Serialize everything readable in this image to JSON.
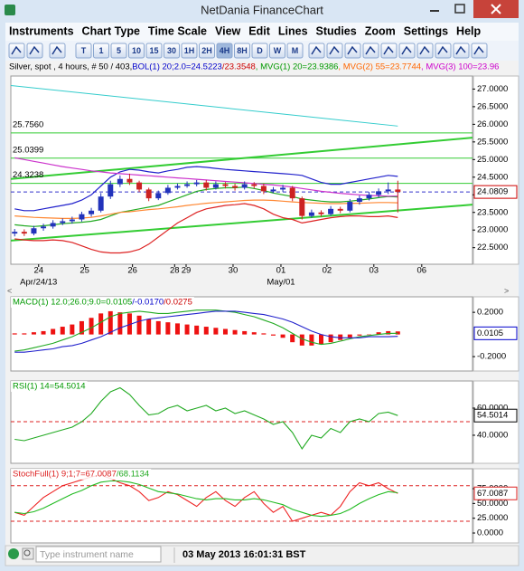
{
  "window": {
    "title": "NetDania FinanceChart"
  },
  "menu": [
    "Instruments",
    "Chart Type",
    "Time Scale",
    "View",
    "Edit",
    "Lines",
    "Studies",
    "Zoom",
    "Settings",
    "Help"
  ],
  "toolbar": {
    "buttons": [
      "T",
      "1",
      "5",
      "10",
      "15",
      "30",
      "1H",
      "2H",
      "4H",
      "8H",
      "D",
      "W",
      "M"
    ],
    "pressed": "4H"
  },
  "info": [
    {
      "text": "Silver, spot , 4 hours, # 50 / 403, ",
      "color": "#000000"
    },
    {
      "text": "BOL(1) 20;2.0=24.5223",
      "color": "#0000cc"
    },
    {
      "text": "/23.3548",
      "color": "#cc0000"
    },
    {
      "text": ", MVG(1) 20=23.9386",
      "color": "#009900"
    },
    {
      "text": ", MVG(2) 55=23.7744",
      "color": "#ff6600"
    },
    {
      "text": ", MVG(3) 100=23.96",
      "color": "#cc00cc"
    }
  ],
  "main_chart": {
    "xlim": [
      -0.4,
      47.8
    ],
    "ylim": [
      22.03,
      27.37
    ],
    "yticks": [
      {
        "value": 22.5,
        "label": "22.5000"
      },
      {
        "value": 23,
        "label": "23.0000"
      },
      {
        "value": 23.5,
        "label": "23.5000"
      },
      {
        "value": 24,
        "label": "24.0000"
      },
      {
        "value": 24.5,
        "label": "24.5000"
      },
      {
        "value": 25,
        "label": "25.0000"
      },
      {
        "value": 25.5,
        "label": "25.5000"
      },
      {
        "value": 26,
        "label": "26.0000"
      },
      {
        "value": 26.5,
        "label": "26.5000"
      },
      {
        "value": 27,
        "label": "27.0000"
      }
    ],
    "xticks": [
      {
        "value": 2.5,
        "label": "24"
      },
      {
        "value": 7.3,
        "label": "25"
      },
      {
        "value": 12.3,
        "label": "26"
      },
      {
        "value": 16.7,
        "label": "28"
      },
      {
        "value": 17.9,
        "label": "29"
      },
      {
        "value": 22.8,
        "label": "30"
      },
      {
        "value": 27.8,
        "label": "01"
      },
      {
        "value": 32.6,
        "label": "02"
      },
      {
        "value": 37.5,
        "label": "03"
      },
      {
        "value": 42.5,
        "label": "06"
      }
    ],
    "date_labels": [
      {
        "value": 2.5,
        "label": "Apr/24/13"
      },
      {
        "value": 27.8,
        "label": "May/01"
      }
    ],
    "up_color": "#2233bb",
    "down_color": "#cc2222",
    "open": [
      22.9,
      22.95,
      22.9,
      23.05,
      23.1,
      23.2,
      23.25,
      23.3,
      23.45,
      23.55,
      23.95,
      24.3,
      24.45,
      24.35,
      24.15,
      23.9,
      24.05,
      24.2,
      24.25,
      24.3,
      24.35,
      24.2,
      24.3,
      24.25,
      24.2,
      24.3,
      24.25,
      24.1,
      24.15,
      24.2,
      23.9,
      23.4,
      23.5,
      23.45,
      23.6,
      23.55,
      23.8,
      23.9,
      24.0,
      24.1,
      24.15
    ],
    "high": [
      23.03,
      23.02,
      23.12,
      23.18,
      23.28,
      23.33,
      23.38,
      23.52,
      23.63,
      24.05,
      24.4,
      24.55,
      24.6,
      24.4,
      24.2,
      24.12,
      24.28,
      24.32,
      24.38,
      24.42,
      24.42,
      24.38,
      24.36,
      24.32,
      24.38,
      24.36,
      24.32,
      24.22,
      24.28,
      24.25,
      23.95,
      23.58,
      23.56,
      23.68,
      23.66,
      23.88,
      23.98,
      24.08,
      24.18,
      24.35,
      24.4
    ],
    "low": [
      22.82,
      22.83,
      22.85,
      22.98,
      23.04,
      23.14,
      23.18,
      23.24,
      23.38,
      23.5,
      23.88,
      24.22,
      24.28,
      24.08,
      23.82,
      23.85,
      24.0,
      24.15,
      24.2,
      24.24,
      24.12,
      24.15,
      24.18,
      24.12,
      24.15,
      24.18,
      24.02,
      24.05,
      24.08,
      23.82,
      23.3,
      23.35,
      23.38,
      23.4,
      23.48,
      23.5,
      23.72,
      23.84,
      23.92,
      24.02,
      23.5
    ],
    "close": [
      22.95,
      22.9,
      23.05,
      23.1,
      23.2,
      23.25,
      23.3,
      23.45,
      23.55,
      23.95,
      24.3,
      24.45,
      24.35,
      24.15,
      23.9,
      24.05,
      24.2,
      24.25,
      24.3,
      24.35,
      24.2,
      24.3,
      24.25,
      24.2,
      24.3,
      24.25,
      24.1,
      24.15,
      24.2,
      23.9,
      23.4,
      23.5,
      23.45,
      23.6,
      23.55,
      23.8,
      23.9,
      24.0,
      24.1,
      24.15,
      24.0809
    ],
    "series": [
      {
        "color": "#2222cc",
        "values": [
          23.6,
          23.55,
          23.55,
          23.6,
          23.65,
          23.7,
          23.75,
          23.85,
          24.0,
          24.25,
          24.5,
          24.65,
          24.72,
          24.7,
          24.65,
          24.62,
          24.68,
          24.72,
          24.78,
          24.8,
          24.78,
          24.75,
          24.72,
          24.7,
          24.68,
          24.66,
          24.64,
          24.62,
          24.6,
          24.58,
          24.55,
          24.45,
          24.35,
          24.3,
          24.3,
          24.35,
          24.4,
          24.45,
          24.5,
          24.55,
          24.5223
        ]
      },
      {
        "color": "#dd2222",
        "values": [
          22.75,
          22.72,
          22.7,
          22.7,
          22.72,
          22.7,
          22.65,
          22.55,
          22.45,
          22.38,
          22.35,
          22.35,
          22.38,
          22.45,
          22.6,
          22.8,
          23.0,
          23.2,
          23.35,
          23.5,
          23.6,
          23.65,
          23.7,
          23.72,
          23.75,
          23.7,
          23.6,
          23.45,
          23.35,
          23.3,
          23.2,
          23.25,
          23.3,
          23.35,
          23.38,
          23.4,
          23.4,
          23.38,
          23.38,
          23.4,
          23.3548
        ]
      },
      {
        "color": "#22aa22",
        "values": [
          23.15,
          23.12,
          23.1,
          23.12,
          23.15,
          23.18,
          23.2,
          23.22,
          23.25,
          23.3,
          23.4,
          23.5,
          23.55,
          23.6,
          23.65,
          23.7,
          23.8,
          23.9,
          24.0,
          24.1,
          24.15,
          24.18,
          24.2,
          24.2,
          24.22,
          24.18,
          24.12,
          24.05,
          24.0,
          23.95,
          23.88,
          23.85,
          23.82,
          23.8,
          23.8,
          23.82,
          23.85,
          23.88,
          23.92,
          23.95,
          23.9386
        ]
      },
      {
        "color": "#ff8833",
        "values": [
          23.4,
          23.38,
          23.36,
          23.35,
          23.34,
          23.33,
          23.33,
          23.34,
          23.36,
          23.4,
          23.45,
          23.5,
          23.52,
          23.55,
          23.58,
          23.6,
          23.63,
          23.66,
          23.7,
          23.73,
          23.76,
          23.78,
          23.8,
          23.82,
          23.84,
          23.85,
          23.85,
          23.84,
          23.82,
          23.8,
          23.78,
          23.77,
          23.76,
          23.75,
          23.75,
          23.76,
          23.76,
          23.77,
          23.78,
          23.78,
          23.7744
        ]
      },
      {
        "color": "#cc33cc",
        "values": [
          25.05,
          25.0,
          24.95,
          24.9,
          24.85,
          24.8,
          24.76,
          24.72,
          24.68,
          24.65,
          24.62,
          24.6,
          24.58,
          24.56,
          24.54,
          24.52,
          24.5,
          24.48,
          24.46,
          24.44,
          24.42,
          24.4,
          24.38,
          24.36,
          24.34,
          24.32,
          24.3,
          24.28,
          24.25,
          24.22,
          24.18,
          24.14,
          24.1,
          24.07,
          24.04,
          24.02,
          24.0,
          23.98,
          23.97,
          23.96,
          23.962
        ]
      }
    ],
    "trend_lines": [
      {
        "color": "#33cccc",
        "x": [
          -0.4,
          40
        ],
        "y": [
          27.1,
          25.95
        ]
      },
      {
        "color": "#33cc33",
        "x": [
          -0.4,
          47.8
        ],
        "y": [
          24.45,
          25.62
        ]
      },
      {
        "color": "#33cc33",
        "x": [
          -0.4,
          47.8
        ],
        "y": [
          22.7,
          23.72
        ]
      }
    ],
    "level_color": "#33cc33",
    "levels": [
      {
        "value": 25.756,
        "label": "25.7560"
      },
      {
        "value": 25.0399,
        "label": "25.0399"
      },
      {
        "value": 24.3238,
        "label": "24.3238"
      }
    ],
    "last": {
      "value": 24.0809,
      "label": "24.0809",
      "color": "#cc0000",
      "line_color": "#3333cc"
    }
  },
  "macd": {
    "label": [
      {
        "text": "MACD(1) 12.0;26.0;9.0=0.0105",
        "color": "#009900"
      },
      {
        "text": "/-0.0170",
        "color": "#0000cc"
      },
      {
        "text": "/0.0275",
        "color": "#cc0000"
      }
    ],
    "ylim": [
      -0.33,
      0.34
    ],
    "yticks": [
      {
        "value": 0.2,
        "label": "0.2000"
      },
      {
        "value": -0.2,
        "label": "-0.2000"
      }
    ],
    "last": {
      "value": 0.0105,
      "label": "0.0105",
      "color": "#0000cc"
    },
    "histogram": {
      "color": "#ee1111",
      "values": [
        0.01,
        0.01,
        0.02,
        0.03,
        0.05,
        0.07,
        0.09,
        0.12,
        0.15,
        0.19,
        0.21,
        0.2,
        0.19,
        0.17,
        0.14,
        0.12,
        0.11,
        0.1,
        0.09,
        0.08,
        0.07,
        0.06,
        0.05,
        0.04,
        0.03,
        0.02,
        0.01,
        -0.01,
        -0.03,
        -0.07,
        -0.1,
        -0.1,
        -0.09,
        -0.07,
        -0.05,
        -0.03,
        -0.01,
        0.0,
        0.02,
        0.03,
        0.0275
      ]
    },
    "series": [
      {
        "color": "#22aa22",
        "values": [
          -0.15,
          -0.14,
          -0.12,
          -0.1,
          -0.08,
          -0.05,
          -0.02,
          0.02,
          0.06,
          0.11,
          0.16,
          0.19,
          0.2,
          0.21,
          0.2,
          0.19,
          0.19,
          0.2,
          0.21,
          0.22,
          0.22,
          0.22,
          0.21,
          0.2,
          0.18,
          0.16,
          0.13,
          0.1,
          0.06,
          0.01,
          -0.04,
          -0.07,
          -0.09,
          -0.08,
          -0.06,
          -0.04,
          -0.02,
          -0.01,
          0.0,
          0.01,
          0.0105
        ]
      },
      {
        "color": "#2222cc",
        "values": [
          -0.16,
          -0.16,
          -0.15,
          -0.14,
          -0.13,
          -0.11,
          -0.1,
          -0.08,
          -0.05,
          -0.02,
          0.02,
          0.06,
          0.09,
          0.12,
          0.14,
          0.15,
          0.16,
          0.17,
          0.18,
          0.19,
          0.2,
          0.21,
          0.21,
          0.21,
          0.2,
          0.19,
          0.18,
          0.16,
          0.14,
          0.11,
          0.07,
          0.03,
          0.0,
          -0.02,
          -0.03,
          -0.03,
          -0.03,
          -0.02,
          -0.02,
          -0.02,
          -0.017
        ]
      }
    ]
  },
  "rsi": {
    "label": [
      {
        "text": "RSI(1) 14=54.5014",
        "color": "#009900"
      }
    ],
    "ylim": [
      19.3,
      80
    ],
    "yticks": [
      {
        "value": 60,
        "label": "60.0000"
      },
      {
        "value": 40,
        "label": "40.0000"
      }
    ],
    "ref_lines": [
      50
    ],
    "ref_color": "#dd2222",
    "last": {
      "value": 54.5014,
      "label": "54.5014",
      "color": "#000000"
    },
    "series": [
      {
        "color": "#22aa22",
        "values": [
          37,
          36,
          38,
          40,
          42,
          44,
          46,
          50,
          56,
          65,
          72,
          75,
          70,
          62,
          55,
          56,
          60,
          62,
          58,
          60,
          62,
          58,
          60,
          56,
          58,
          55,
          52,
          48,
          50,
          42,
          30,
          40,
          38,
          45,
          42,
          50,
          52,
          50,
          56,
          57,
          54.5014
        ]
      }
    ]
  },
  "stoch": {
    "label": [
      {
        "text": "StochFull(1) 9;1;7=67.0087",
        "color": "#dd2222"
      },
      {
        "text": "/68.1134",
        "color": "#22aa22"
      }
    ],
    "ylim": [
      -16.8,
      108.7
    ],
    "yticks": [
      {
        "value": 75,
        "label": "75.0000"
      },
      {
        "value": 50,
        "label": "50.0000"
      },
      {
        "value": 25,
        "label": "25.0000"
      },
      {
        "value": 0,
        "label": "0.0000"
      }
    ],
    "ref_lines": [
      80,
      20
    ],
    "ref_color": "#dd2222",
    "last": {
      "value": 67.0087,
      "label": "67.0087",
      "color": "#dd2222"
    },
    "series": [
      {
        "color": "#ee2222",
        "values": [
          35,
          30,
          45,
          60,
          70,
          80,
          85,
          90,
          95,
          98,
          92,
          85,
          80,
          70,
          55,
          60,
          70,
          65,
          55,
          45,
          60,
          70,
          55,
          45,
          60,
          70,
          50,
          35,
          45,
          20,
          25,
          30,
          35,
          30,
          45,
          70,
          85,
          80,
          85,
          75,
          67.0087
        ]
      },
      {
        "color": "#22bb22",
        "values": [
          35,
          33,
          36,
          42,
          50,
          58,
          66,
          72,
          80,
          86,
          88,
          88,
          86,
          82,
          76,
          70,
          68,
          66,
          62,
          58,
          56,
          58,
          58,
          56,
          56,
          58,
          56,
          52,
          48,
          40,
          35,
          30,
          28,
          30,
          33,
          40,
          50,
          58,
          65,
          70,
          68.1134
        ]
      }
    ]
  },
  "status": {
    "placeholder": "Type instrument name",
    "datetime": "03 May 2013 16:01:31 BST"
  }
}
